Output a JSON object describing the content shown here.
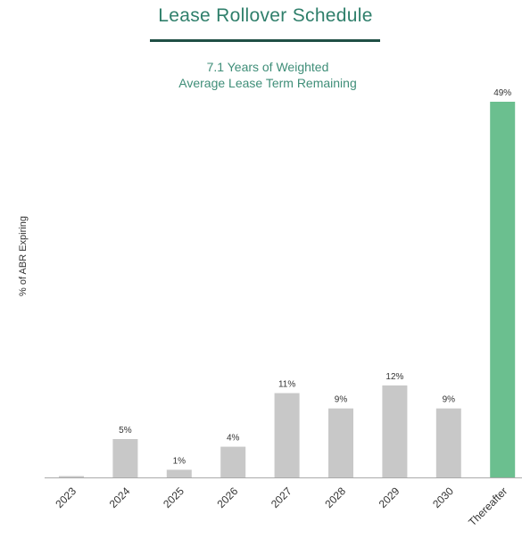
{
  "chart_data": {
    "type": "bar",
    "title": "Lease Rollover Schedule",
    "subtitle": [
      "7.1 Years of Weighted",
      "Average Lease Term Remaining"
    ],
    "ylabel": "% of ABR Expiring",
    "xlabel": "",
    "categories": [
      "2023",
      "2024",
      "2025",
      "2026",
      "2027",
      "2028",
      "2029",
      "2030",
      "Thereafter"
    ],
    "values": [
      0,
      5,
      1,
      4,
      11,
      9,
      12,
      9,
      49
    ],
    "data_labels": [
      "",
      "5%",
      "1%",
      "4%",
      "11%",
      "9%",
      "12%",
      "9%",
      "49%"
    ],
    "ylim": [
      0,
      49
    ],
    "grid": false,
    "legend": "none",
    "colors": {
      "default_bar": "#c8c8c8",
      "highlight_bar": "#6bbf8f",
      "title": "#2f7f6b",
      "rule": "#1f4f45",
      "subtitle": "#3f8e78",
      "axis": "#aaaaaa"
    },
    "highlight_category": "Thereafter"
  }
}
